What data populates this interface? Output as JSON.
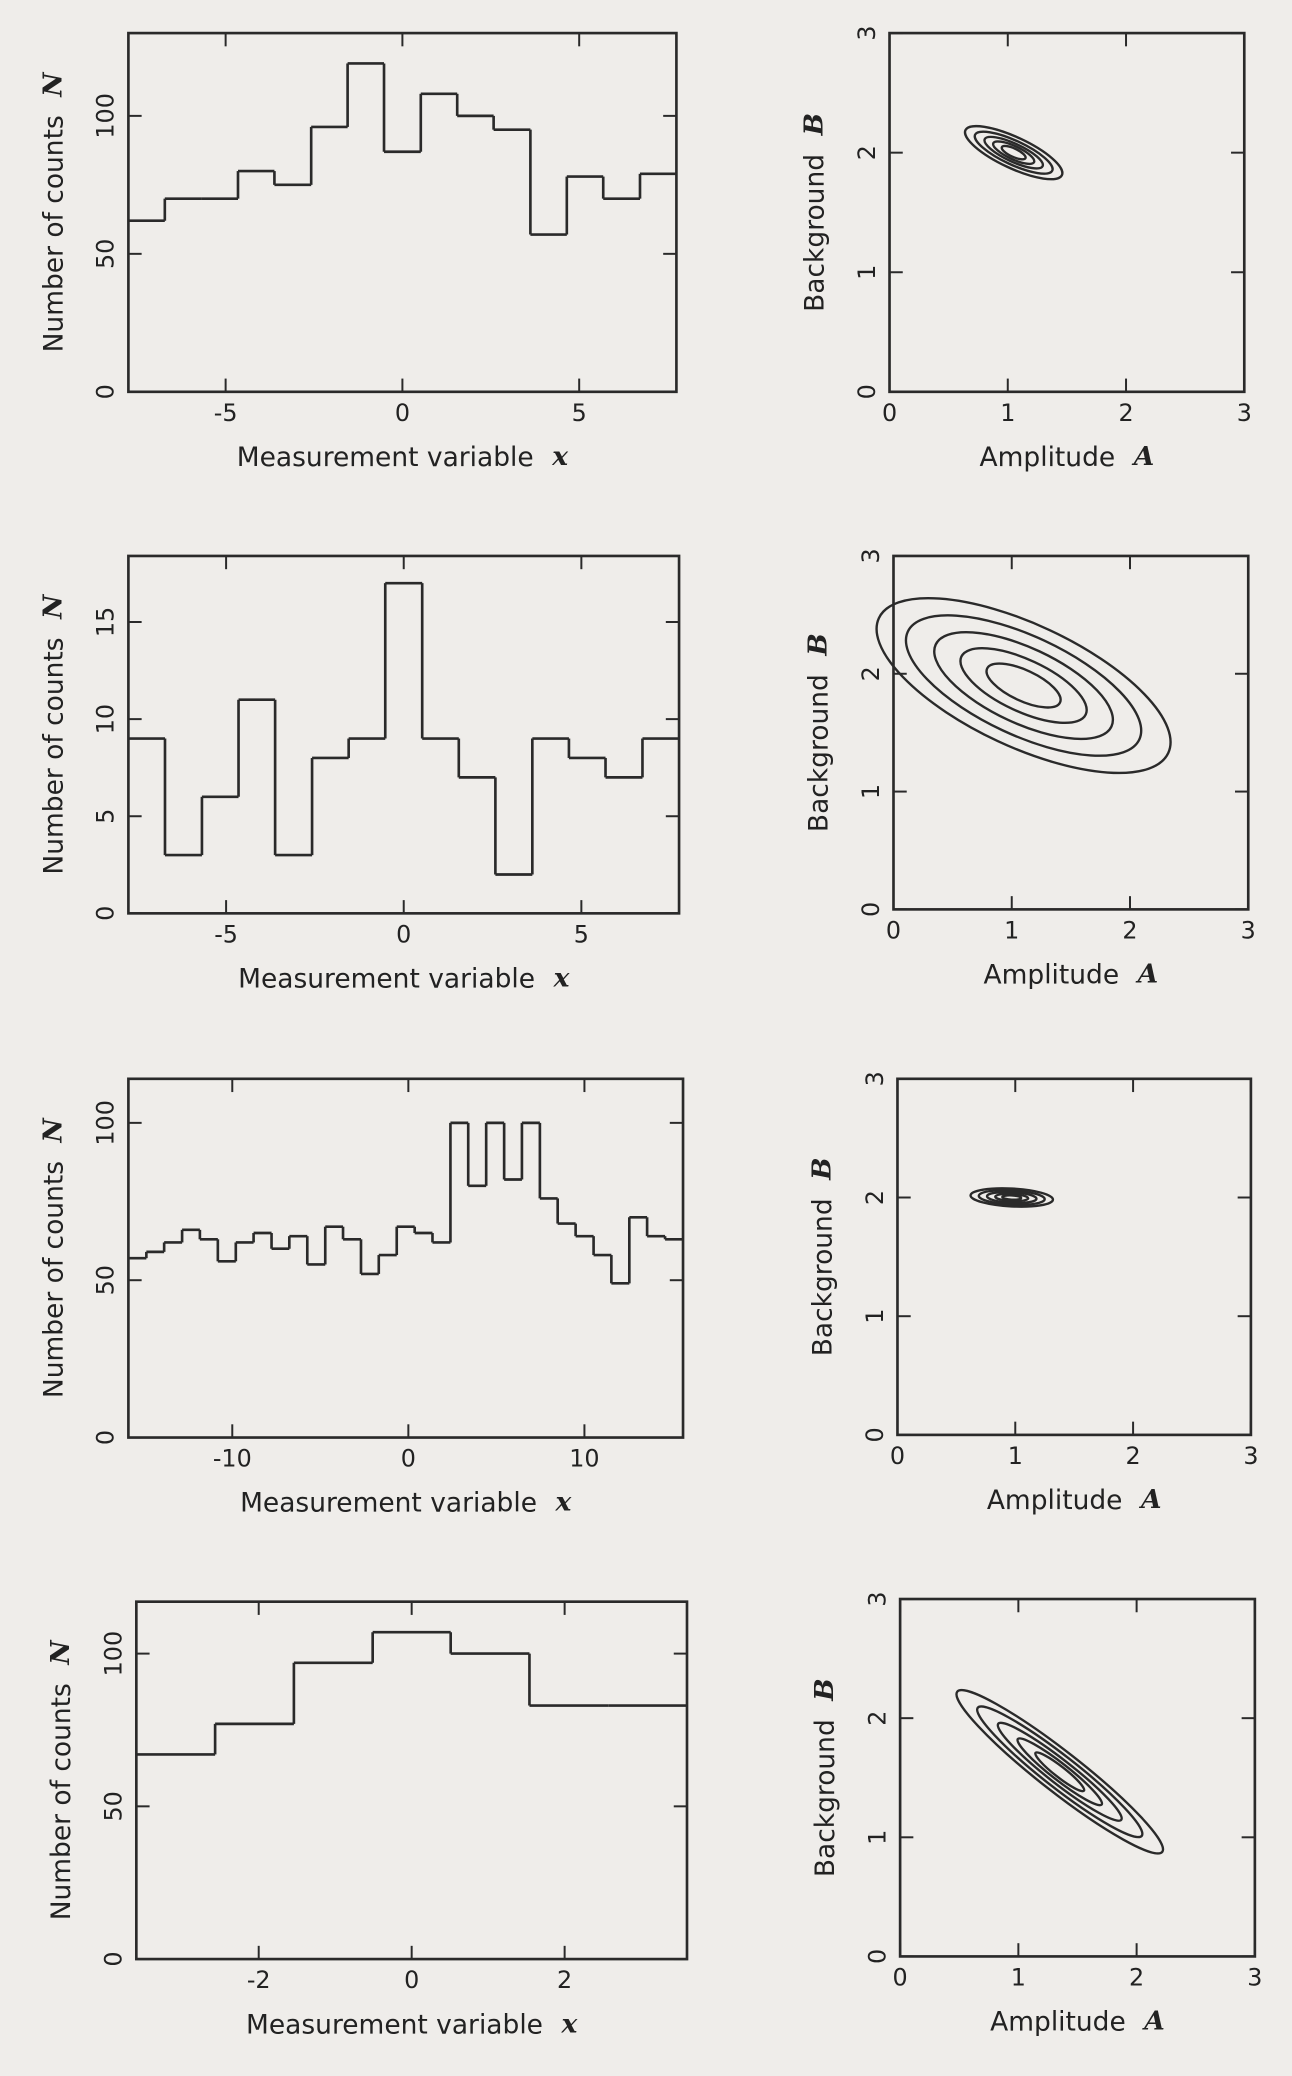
{
  "chart_data": [
    {
      "type": "histogram",
      "xlabel": "Measurement variable",
      "xlabel_symbol": "x",
      "ylabel": "Number of counts",
      "ylabel_symbol": "N",
      "bins": [
        -7.75,
        -6.72,
        -5.68,
        -4.65,
        -3.62,
        -2.58,
        -1.55,
        -0.52,
        0.52,
        1.55,
        2.58,
        3.62,
        4.65,
        5.68,
        6.72,
        7.75
      ],
      "values": [
        62,
        70,
        70,
        80,
        75,
        96,
        119,
        87,
        108,
        100,
        95,
        57,
        78,
        70,
        79
      ],
      "xlim": [
        -7.75,
        7.75
      ],
      "ylim": [
        0,
        130
      ],
      "xticks": [
        -5,
        0,
        5
      ],
      "yticks": [
        0,
        50,
        100
      ]
    },
    {
      "type": "contour",
      "xlabel": "Amplitude",
      "xlabel_symbol": "A",
      "ylabel": "Background",
      "ylabel_symbol": "B",
      "center": [
        1.05,
        2.0
      ],
      "angle": -25,
      "levels": [
        {
          "rx": 0.45,
          "ry": 0.13
        },
        {
          "rx": 0.36,
          "ry": 0.1
        },
        {
          "rx": 0.27,
          "ry": 0.075
        },
        {
          "rx": 0.19,
          "ry": 0.055
        },
        {
          "rx": 0.11,
          "ry": 0.035
        }
      ],
      "xlim": [
        0,
        3
      ],
      "ylim": [
        0,
        3
      ],
      "xticks": [
        0,
        1,
        2,
        3
      ],
      "yticks": [
        0,
        1,
        2,
        3
      ]
    },
    {
      "type": "histogram",
      "xlabel": "Measurement variable",
      "xlabel_symbol": "x",
      "ylabel": "Number of counts",
      "ylabel_symbol": "N",
      "bins": [
        -7.75,
        -6.72,
        -5.68,
        -4.65,
        -3.62,
        -2.58,
        -1.55,
        -0.52,
        0.52,
        1.55,
        2.58,
        3.62,
        4.65,
        5.68,
        6.72,
        7.75
      ],
      "values": [
        9,
        3,
        6,
        11,
        3,
        8,
        9,
        17,
        9,
        7,
        2,
        9,
        8,
        7,
        9
      ],
      "xlim": [
        -7.75,
        7.75
      ],
      "ylim": [
        0,
        18.4
      ],
      "xticks": [
        -5,
        0,
        5
      ],
      "yticks": [
        0,
        5,
        10,
        15
      ]
    },
    {
      "type": "contour",
      "xlabel": "Amplitude",
      "xlabel_symbol": "A",
      "ylabel": "Background",
      "ylabel_symbol": "B",
      "center": [
        1.1,
        1.9
      ],
      "angle": -25,
      "levels": [
        {
          "rx": 1.35,
          "ry": 0.52
        },
        {
          "rx": 1.08,
          "ry": 0.42
        },
        {
          "rx": 0.82,
          "ry": 0.32
        },
        {
          "rx": 0.58,
          "ry": 0.22
        },
        {
          "rx": 0.34,
          "ry": 0.13
        }
      ],
      "xlim": [
        0,
        3
      ],
      "ylim": [
        0,
        3
      ],
      "xticks": [
        0,
        1,
        2,
        3
      ],
      "yticks": [
        0,
        1,
        2,
        3
      ]
    },
    {
      "type": "histogram",
      "xlabel": "Measurement variable",
      "xlabel_symbol": "x",
      "ylabel": "Number of counts",
      "ylabel_symbol": "N",
      "bins": [
        -15.9,
        -14.88,
        -13.87,
        -12.85,
        -11.84,
        -10.82,
        -9.8,
        -8.79,
        -7.77,
        -6.76,
        -5.74,
        -4.72,
        -3.71,
        -2.69,
        -1.68,
        -0.66,
        0.36,
        1.37,
        2.39,
        3.4,
        4.42,
        5.44,
        6.45,
        7.47,
        8.48,
        9.5,
        10.52,
        11.53,
        12.55,
        13.56,
        14.58,
        15.6
      ],
      "values": [
        57,
        59,
        62,
        66,
        63,
        56,
        62,
        65,
        60,
        64,
        55,
        67,
        63,
        52,
        58,
        67,
        65,
        62,
        100,
        80,
        100,
        82,
        100,
        76,
        68,
        64,
        58,
        49,
        70,
        64,
        63
      ],
      "xlim": [
        -15.9,
        15.6
      ],
      "ylim": [
        0,
        114
      ],
      "xticks": [
        -10,
        0,
        10
      ],
      "yticks": [
        0,
        50,
        100
      ]
    },
    {
      "type": "contour",
      "xlabel": "Amplitude",
      "xlabel_symbol": "A",
      "ylabel": "Background",
      "ylabel_symbol": "B",
      "center": [
        0.97,
        2.0
      ],
      "angle": -3,
      "levels": [
        {
          "rx": 0.35,
          "ry": 0.075
        },
        {
          "rx": 0.28,
          "ry": 0.06
        },
        {
          "rx": 0.21,
          "ry": 0.045
        },
        {
          "rx": 0.14,
          "ry": 0.03
        },
        {
          "rx": 0.08,
          "ry": 0.018
        }
      ],
      "xlim": [
        0,
        3
      ],
      "ylim": [
        0,
        3
      ],
      "xticks": [
        0,
        1,
        2,
        3
      ],
      "yticks": [
        0,
        1,
        2,
        3
      ]
    },
    {
      "type": "histogram",
      "xlabel": "Measurement variable",
      "xlabel_symbol": "x",
      "ylabel": "Number of counts",
      "ylabel_symbol": "N",
      "bins": [
        -3.6,
        -2.57,
        -1.54,
        -0.51,
        0.51,
        1.54,
        2.57,
        3.6
      ],
      "values": [
        67,
        77,
        97,
        107,
        100,
        83,
        83
      ],
      "xlim": [
        -3.6,
        3.6
      ],
      "ylim": [
        0,
        117
      ],
      "xticks": [
        -2,
        0,
        2
      ],
      "yticks": [
        0,
        50,
        100
      ]
    },
    {
      "type": "contour",
      "xlabel": "Amplitude",
      "xlabel_symbol": "A",
      "ylabel": "Background",
      "ylabel_symbol": "B",
      "center": [
        1.35,
        1.55
      ],
      "angle": -38,
      "levels": [
        {
          "rx": 1.1,
          "ry": 0.17
        },
        {
          "rx": 0.88,
          "ry": 0.135
        },
        {
          "rx": 0.66,
          "ry": 0.1
        },
        {
          "rx": 0.45,
          "ry": 0.07
        },
        {
          "rx": 0.26,
          "ry": 0.045
        }
      ],
      "xlim": [
        0,
        3
      ],
      "ylim": [
        0,
        3
      ],
      "xticks": [
        0,
        1,
        2,
        3
      ],
      "yticks": [
        0,
        1,
        2,
        3
      ]
    }
  ]
}
